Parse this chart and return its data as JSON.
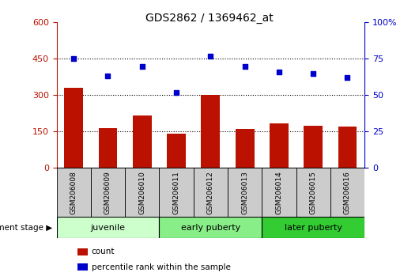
{
  "title": "GDS2862 / 1369462_at",
  "samples": [
    "GSM206008",
    "GSM206009",
    "GSM206010",
    "GSM206011",
    "GSM206012",
    "GSM206013",
    "GSM206014",
    "GSM206015",
    "GSM206016"
  ],
  "counts": [
    330,
    165,
    215,
    140,
    300,
    162,
    185,
    175,
    170
  ],
  "percentile_ranks": [
    75,
    63,
    70,
    52,
    77,
    70,
    66,
    65,
    62
  ],
  "ylim_left": [
    0,
    600
  ],
  "ylim_right": [
    0,
    100
  ],
  "yticks_left": [
    0,
    150,
    300,
    450,
    600
  ],
  "yticks_right": [
    0,
    25,
    50,
    75,
    100
  ],
  "bar_color": "#bb1100",
  "scatter_color": "#0000cc",
  "groups": [
    {
      "label": "juvenile",
      "spans": [
        0,
        1,
        2
      ],
      "color": "#ccffcc"
    },
    {
      "label": "early puberty",
      "spans": [
        3,
        4,
        5
      ],
      "color": "#88ee88"
    },
    {
      "label": "later puberty",
      "spans": [
        6,
        7,
        8
      ],
      "color": "#33cc33"
    }
  ],
  "group_label_prefix": "development stage",
  "legend_items": [
    {
      "color": "#bb1100",
      "label": "count"
    },
    {
      "color": "#0000cc",
      "label": "percentile rank within the sample"
    }
  ],
  "bar_bg_color": "#cccccc",
  "dotted_lines": [
    150,
    300,
    450
  ]
}
